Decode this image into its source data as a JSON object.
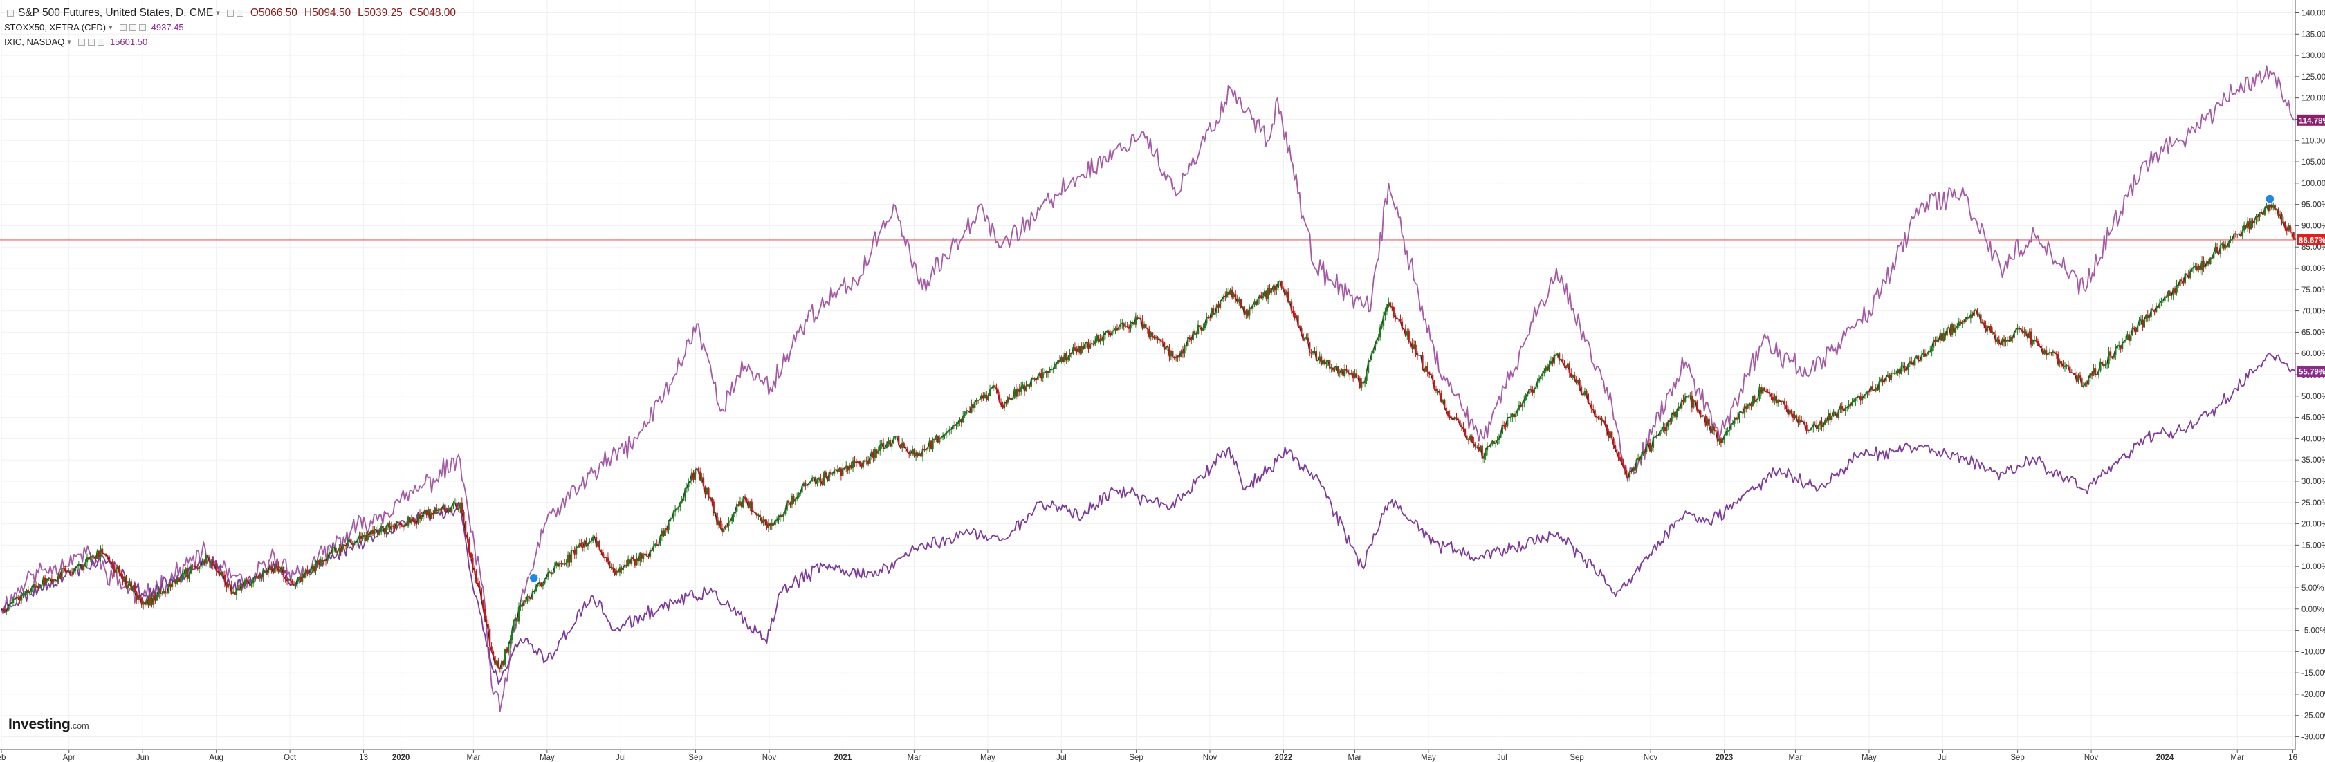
{
  "legend": {
    "main": {
      "name": "S&P 500 Futures, United States, D, CME",
      "open": "O5066.50",
      "high": "H5094.50",
      "low": "L5039.25",
      "close": "C5048.00"
    },
    "stoxx": {
      "name": "STOXX50, XETRA (CFD)",
      "value": "4937.45"
    },
    "ixic": {
      "name": "IXIC, NASDAQ",
      "value": "15601.50"
    }
  },
  "logo": {
    "brand": "Investing",
    "suffix": ".com"
  },
  "colors": {
    "background": "#ffffff",
    "grid": "#f0f0f0",
    "up": "#1e7b1e",
    "down": "#c21a1a",
    "sp_line": "#222222",
    "ixic_line": "#a45aa4",
    "stoxx_line": "#7d3a9a",
    "ref_line": "#ee7b7b",
    "badge_ixic": "#8a1f6b",
    "badge_sp": "#e0201e",
    "badge_stoxx": "#8e2a8e",
    "marker": "#1e88e5"
  },
  "chart_data": {
    "type": "line",
    "y_unit": "%",
    "ylim": [
      -33,
      143
    ],
    "y_ticks": [
      140,
      135,
      130,
      125,
      120,
      115,
      110,
      105,
      100,
      95,
      90,
      85,
      80,
      75,
      70,
      65,
      60,
      55,
      50,
      45,
      40,
      35,
      30,
      25,
      20,
      15,
      10,
      5,
      0,
      -5,
      -10,
      -15,
      -20,
      -25,
      -30
    ],
    "y_tick_labels": [
      "140.00%",
      "135.00%",
      "130.00%",
      "125.00%",
      "120.00%",
      "115.00%",
      "110.00%",
      "105.00%",
      "100.00%",
      "95.00%",
      "90.00%",
      "85.00%",
      "80.00%",
      "75.00%",
      "70.00%",
      "65.00%",
      "60.00%",
      "55.00%",
      "50.00%",
      "45.00%",
      "40.00%",
      "35.00%",
      "30.00%",
      "25.00%",
      "20.00%",
      "15.00%",
      "10.00%",
      "5.00%",
      "0.00%",
      "-5.00%",
      "-10.00%",
      "-15.00%",
      "-20.00%",
      "-25.00%",
      "-30.00%"
    ],
    "x_start": "2019-02-04",
    "x_end": "2024-04-18",
    "x_ticks": [
      {
        "date": "2019-02-04",
        "label": "eb",
        "bold": false
      },
      {
        "date": "2019-04-01",
        "label": "Apr",
        "bold": false
      },
      {
        "date": "2019-06-01",
        "label": "Jun",
        "bold": false
      },
      {
        "date": "2019-08-01",
        "label": "Aug",
        "bold": false
      },
      {
        "date": "2019-10-01",
        "label": "Oct",
        "bold": false
      },
      {
        "date": "2019-12-01",
        "label": "13",
        "bold": false
      },
      {
        "date": "2020-01-01",
        "label": "2020",
        "bold": true
      },
      {
        "date": "2020-03-01",
        "label": "Mar",
        "bold": false
      },
      {
        "date": "2020-05-01",
        "label": "May",
        "bold": false
      },
      {
        "date": "2020-07-01",
        "label": "Jul",
        "bold": false
      },
      {
        "date": "2020-09-01",
        "label": "Sep",
        "bold": false
      },
      {
        "date": "2020-11-01",
        "label": "Nov",
        "bold": false
      },
      {
        "date": "2021-01-01",
        "label": "2021",
        "bold": true
      },
      {
        "date": "2021-03-01",
        "label": "Mar",
        "bold": false
      },
      {
        "date": "2021-05-01",
        "label": "May",
        "bold": false
      },
      {
        "date": "2021-07-01",
        "label": "Jul",
        "bold": false
      },
      {
        "date": "2021-09-01",
        "label": "Sep",
        "bold": false
      },
      {
        "date": "2021-11-01",
        "label": "Nov",
        "bold": false
      },
      {
        "date": "2022-01-01",
        "label": "2022",
        "bold": true
      },
      {
        "date": "2022-03-01",
        "label": "Mar",
        "bold": false
      },
      {
        "date": "2022-05-01",
        "label": "May",
        "bold": false
      },
      {
        "date": "2022-07-01",
        "label": "Jul",
        "bold": false
      },
      {
        "date": "2022-09-01",
        "label": "Sep",
        "bold": false
      },
      {
        "date": "2022-11-01",
        "label": "Nov",
        "bold": false
      },
      {
        "date": "2023-01-01",
        "label": "2023",
        "bold": true
      },
      {
        "date": "2023-03-01",
        "label": "Mar",
        "bold": false
      },
      {
        "date": "2023-05-01",
        "label": "May",
        "bold": false
      },
      {
        "date": "2023-07-01",
        "label": "Jul",
        "bold": false
      },
      {
        "date": "2023-09-01",
        "label": "Sep",
        "bold": false
      },
      {
        "date": "2023-11-01",
        "label": "Nov",
        "bold": false
      },
      {
        "date": "2024-01-01",
        "label": "2024",
        "bold": true
      },
      {
        "date": "2024-03-01",
        "label": "Mar",
        "bold": false
      },
      {
        "date": "2024-04-16",
        "label": "16",
        "bold": false
      }
    ],
    "reference_line": 86.67,
    "series": [
      {
        "name": "IXIC, NASDAQ",
        "style": "line",
        "badge": "114.78%",
        "points": [
          [
            "2019-02-04",
            0
          ],
          [
            "2019-03-01",
            8
          ],
          [
            "2019-04-15",
            13
          ],
          [
            "2019-05-31",
            2
          ],
          [
            "2019-07-20",
            13
          ],
          [
            "2019-08-26",
            5
          ],
          [
            "2019-09-15",
            12
          ],
          [
            "2019-10-10",
            8
          ],
          [
            "2019-11-20",
            18
          ],
          [
            "2019-12-31",
            25
          ],
          [
            "2020-02-19",
            35
          ],
          [
            "2020-02-28",
            18
          ],
          [
            "2020-03-09",
            5
          ],
          [
            "2020-03-16",
            -18
          ],
          [
            "2020-03-23",
            -24
          ],
          [
            "2020-04-08",
            0
          ],
          [
            "2020-04-29",
            20
          ],
          [
            "2020-06-08",
            32
          ],
          [
            "2020-07-15",
            40
          ],
          [
            "2020-08-15",
            55
          ],
          [
            "2020-09-02",
            67
          ],
          [
            "2020-09-23",
            47
          ],
          [
            "2020-10-12",
            57
          ],
          [
            "2020-11-02",
            52
          ],
          [
            "2020-12-01",
            68
          ],
          [
            "2021-01-15",
            78
          ],
          [
            "2021-02-12",
            95
          ],
          [
            "2021-03-08",
            75
          ],
          [
            "2021-04-26",
            95
          ],
          [
            "2021-05-12",
            85
          ],
          [
            "2021-07-08",
            100
          ],
          [
            "2021-09-07",
            112
          ],
          [
            "2021-10-04",
            97
          ],
          [
            "2021-11-19",
            122
          ],
          [
            "2021-12-20",
            110
          ],
          [
            "2021-12-27",
            120
          ],
          [
            "2022-01-27",
            80
          ],
          [
            "2022-03-14",
            70
          ],
          [
            "2022-03-29",
            100
          ],
          [
            "2022-05-11",
            55
          ],
          [
            "2022-06-16",
            40
          ],
          [
            "2022-08-15",
            80
          ],
          [
            "2022-09-30",
            48
          ],
          [
            "2022-10-13",
            30
          ],
          [
            "2022-11-30",
            58
          ],
          [
            "2022-12-28",
            40
          ],
          [
            "2023-02-02",
            63
          ],
          [
            "2023-03-13",
            55
          ],
          [
            "2023-05-01",
            70
          ],
          [
            "2023-06-15",
            95
          ],
          [
            "2023-07-19",
            97
          ],
          [
            "2023-08-18",
            80
          ],
          [
            "2023-09-15",
            88
          ],
          [
            "2023-10-26",
            75
          ],
          [
            "2023-12-15",
            105
          ],
          [
            "2024-01-15",
            110
          ],
          [
            "2024-03-01",
            122
          ],
          [
            "2024-03-31",
            126
          ],
          [
            "2024-04-18",
            114.78
          ]
        ]
      },
      {
        "name": "S&P 500 Futures, United States, D, CME",
        "style": "candles",
        "badge": "86.67%",
        "points": [
          [
            "2019-02-04",
            0
          ],
          [
            "2019-03-01",
            5
          ],
          [
            "2019-04-30",
            13
          ],
          [
            "2019-06-03",
            1
          ],
          [
            "2019-07-25",
            12
          ],
          [
            "2019-08-15",
            4
          ],
          [
            "2019-09-20",
            10
          ],
          [
            "2019-10-03",
            6
          ],
          [
            "2019-11-15",
            15
          ],
          [
            "2019-12-31",
            20
          ],
          [
            "2020-02-19",
            25
          ],
          [
            "2020-02-28",
            12
          ],
          [
            "2020-03-09",
            0
          ],
          [
            "2020-03-16",
            -10
          ],
          [
            "2020-03-23",
            -14
          ],
          [
            "2020-04-09",
            1
          ],
          [
            "2020-04-29",
            7
          ],
          [
            "2020-06-08",
            17
          ],
          [
            "2020-06-26",
            8
          ],
          [
            "2020-07-31",
            15
          ],
          [
            "2020-09-02",
            33
          ],
          [
            "2020-09-23",
            18
          ],
          [
            "2020-10-12",
            26
          ],
          [
            "2020-10-30",
            19
          ],
          [
            "2020-12-01",
            29
          ],
          [
            "2021-01-15",
            34
          ],
          [
            "2021-02-12",
            40
          ],
          [
            "2021-03-04",
            36
          ],
          [
            "2021-05-07",
            52
          ],
          [
            "2021-05-12",
            48
          ],
          [
            "2021-07-08",
            60
          ],
          [
            "2021-09-02",
            68
          ],
          [
            "2021-10-04",
            59
          ],
          [
            "2021-11-18",
            75
          ],
          [
            "2021-12-01",
            70
          ],
          [
            "2021-12-29",
            77
          ],
          [
            "2022-01-24",
            60
          ],
          [
            "2022-03-08",
            53
          ],
          [
            "2022-03-29",
            72
          ],
          [
            "2022-05-20",
            45
          ],
          [
            "2022-06-16",
            36
          ],
          [
            "2022-08-16",
            60
          ],
          [
            "2022-09-30",
            40
          ],
          [
            "2022-10-12",
            31
          ],
          [
            "2022-12-01",
            50
          ],
          [
            "2022-12-28",
            40
          ],
          [
            "2023-02-02",
            52
          ],
          [
            "2023-03-13",
            42
          ],
          [
            "2023-05-01",
            51
          ],
          [
            "2023-06-15",
            60
          ],
          [
            "2023-07-27",
            70
          ],
          [
            "2023-08-18",
            62
          ],
          [
            "2023-09-01",
            66
          ],
          [
            "2023-10-27",
            53
          ],
          [
            "2023-12-15",
            68
          ],
          [
            "2024-01-15",
            77
          ],
          [
            "2024-03-01",
            88
          ],
          [
            "2024-03-28",
            95
          ],
          [
            "2024-04-18",
            86.67
          ]
        ]
      },
      {
        "name": "STOXX50, XETRA (CFD)",
        "style": "line",
        "badge": "55.79%",
        "points": [
          [
            "2019-02-04",
            0
          ],
          [
            "2019-03-15",
            6
          ],
          [
            "2019-04-30",
            12
          ],
          [
            "2019-06-03",
            3
          ],
          [
            "2019-07-25",
            12
          ],
          [
            "2019-08-15",
            5
          ],
          [
            "2019-09-20",
            10
          ],
          [
            "2019-10-03",
            6
          ],
          [
            "2019-11-15",
            14
          ],
          [
            "2019-12-31",
            20
          ],
          [
            "2020-02-19",
            24
          ],
          [
            "2020-02-28",
            8
          ],
          [
            "2020-03-09",
            -5
          ],
          [
            "2020-03-18",
            -15
          ],
          [
            "2020-03-23",
            -17
          ],
          [
            "2020-04-09",
            -7
          ],
          [
            "2020-05-01",
            -12
          ],
          [
            "2020-06-08",
            3
          ],
          [
            "2020-06-26",
            -5
          ],
          [
            "2020-08-15",
            2
          ],
          [
            "2020-09-15",
            4
          ],
          [
            "2020-10-30",
            -8
          ],
          [
            "2020-11-10",
            4
          ],
          [
            "2020-12-15",
            10
          ],
          [
            "2021-01-29",
            8
          ],
          [
            "2021-03-01",
            14
          ],
          [
            "2021-04-15",
            18
          ],
          [
            "2021-05-12",
            16
          ],
          [
            "2021-06-15",
            25
          ],
          [
            "2021-07-19",
            22
          ],
          [
            "2021-08-13",
            28
          ],
          [
            "2021-09-30",
            24
          ],
          [
            "2021-11-17",
            38
          ],
          [
            "2021-11-30",
            28
          ],
          [
            "2022-01-05",
            37
          ],
          [
            "2022-01-31",
            30
          ],
          [
            "2022-03-07",
            10
          ],
          [
            "2022-03-29",
            25
          ],
          [
            "2022-05-10",
            15
          ],
          [
            "2022-06-16",
            12
          ],
          [
            "2022-08-16",
            18
          ],
          [
            "2022-09-29",
            5
          ],
          [
            "2022-10-03",
            3
          ],
          [
            "2022-11-30",
            23
          ],
          [
            "2022-12-20",
            20
          ],
          [
            "2023-02-16",
            33
          ],
          [
            "2023-03-20",
            28
          ],
          [
            "2023-04-20",
            36
          ],
          [
            "2023-06-15",
            38
          ],
          [
            "2023-07-19",
            35
          ],
          [
            "2023-08-18",
            32
          ],
          [
            "2023-09-15",
            35
          ],
          [
            "2023-10-26",
            28
          ],
          [
            "2023-12-15",
            40
          ],
          [
            "2024-01-17",
            42
          ],
          [
            "2024-02-15",
            48
          ],
          [
            "2024-03-28",
            60
          ],
          [
            "2024-04-18",
            55.79
          ]
        ]
      }
    ],
    "markers": [
      {
        "date": "2020-04-20",
        "value": 6
      },
      {
        "date": "2024-03-28",
        "value": 95
      }
    ]
  }
}
